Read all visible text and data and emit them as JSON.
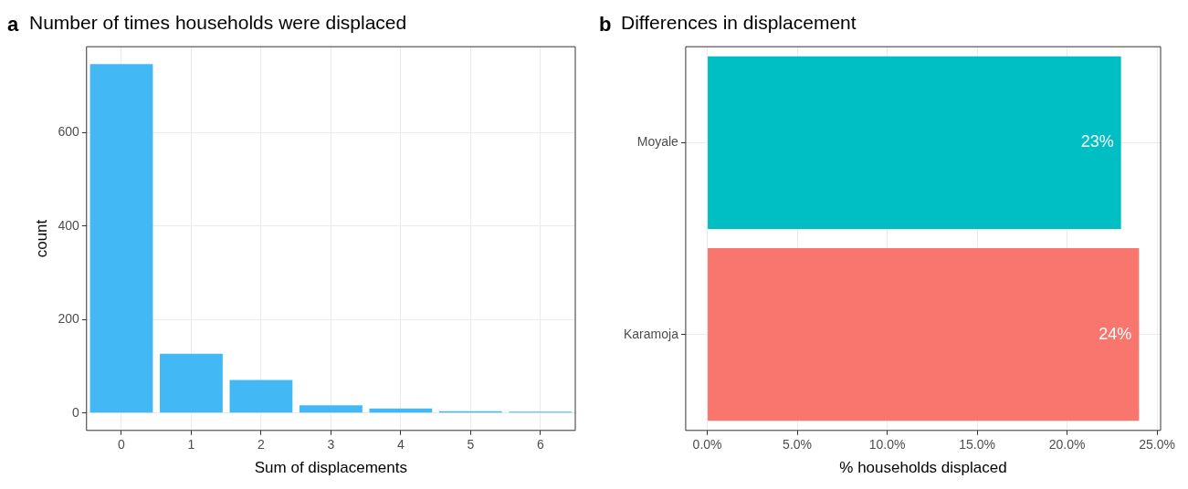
{
  "chart_data": [
    {
      "type": "bar",
      "title": "Number of times households were displaced",
      "annotations": [
        "a"
      ],
      "xlabel": "Sum of displacements",
      "ylabel": "count",
      "categories": [
        "0",
        "1",
        "2",
        "3",
        "4",
        "5",
        "6"
      ],
      "values": [
        747,
        127,
        71,
        17,
        10,
        4,
        3
      ],
      "color": "#42b9f5",
      "ylim": [
        -37,
        784
      ],
      "yticks": [
        0,
        200,
        400,
        600
      ],
      "grid": true,
      "legend": false
    },
    {
      "type": "bar",
      "orientation": "horizontal",
      "title": "Differences in displacement",
      "annotations": [
        "b"
      ],
      "xlabel": "% households displaced",
      "categories": [
        "Moyale",
        "Karamoja"
      ],
      "values": [
        23.0,
        24.0
      ],
      "colors": [
        "#00bfc4",
        "#f8766d"
      ],
      "value_labels": [
        "23%",
        "24%"
      ],
      "xlim": [
        -1.2,
        25.2
      ],
      "xticks": [
        {
          "value": 0,
          "label": "0.0%"
        },
        {
          "value": 5,
          "label": "5.0%"
        },
        {
          "value": 10,
          "label": "10.0%"
        },
        {
          "value": 15,
          "label": "15.0%"
        },
        {
          "value": 20,
          "label": "20.0%"
        },
        {
          "value": 25,
          "label": "25.0%"
        }
      ],
      "grid": true,
      "legend": false
    }
  ]
}
